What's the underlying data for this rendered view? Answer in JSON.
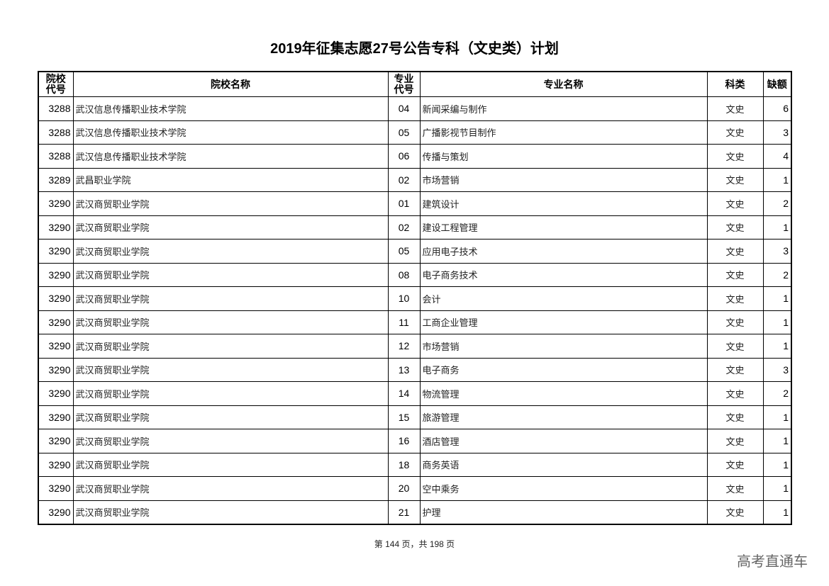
{
  "title": "2019年征集志愿27号公告专科（文史类）计划",
  "headers": {
    "school_code": "院校代号",
    "school_name": "院校名称",
    "major_code": "专业代号",
    "major_name": "专业名称",
    "category": "科类",
    "vacancies": "缺额"
  },
  "rows": [
    [
      "3288",
      "武汉信息传播职业技术学院",
      "04",
      "新闻采编与制作",
      "文史",
      "6"
    ],
    [
      "3288",
      "武汉信息传播职业技术学院",
      "05",
      "广播影视节目制作",
      "文史",
      "3"
    ],
    [
      "3288",
      "武汉信息传播职业技术学院",
      "06",
      "传播与策划",
      "文史",
      "4"
    ],
    [
      "3289",
      "武昌职业学院",
      "02",
      "市场营销",
      "文史",
      "1"
    ],
    [
      "3290",
      "武汉商贸职业学院",
      "01",
      "建筑设计",
      "文史",
      "2"
    ],
    [
      "3290",
      "武汉商贸职业学院",
      "02",
      "建设工程管理",
      "文史",
      "1"
    ],
    [
      "3290",
      "武汉商贸职业学院",
      "05",
      "应用电子技术",
      "文史",
      "3"
    ],
    [
      "3290",
      "武汉商贸职业学院",
      "08",
      "电子商务技术",
      "文史",
      "2"
    ],
    [
      "3290",
      "武汉商贸职业学院",
      "10",
      "会计",
      "文史",
      "1"
    ],
    [
      "3290",
      "武汉商贸职业学院",
      "11",
      "工商企业管理",
      "文史",
      "1"
    ],
    [
      "3290",
      "武汉商贸职业学院",
      "12",
      "市场营销",
      "文史",
      "1"
    ],
    [
      "3290",
      "武汉商贸职业学院",
      "13",
      "电子商务",
      "文史",
      "3"
    ],
    [
      "3290",
      "武汉商贸职业学院",
      "14",
      "物流管理",
      "文史",
      "2"
    ],
    [
      "3290",
      "武汉商贸职业学院",
      "15",
      "旅游管理",
      "文史",
      "1"
    ],
    [
      "3290",
      "武汉商贸职业学院",
      "16",
      "酒店管理",
      "文史",
      "1"
    ],
    [
      "3290",
      "武汉商贸职业学院",
      "18",
      "商务英语",
      "文史",
      "1"
    ],
    [
      "3290",
      "武汉商贸职业学院",
      "20",
      "空中乘务",
      "文史",
      "1"
    ],
    [
      "3290",
      "武汉商贸职业学院",
      "21",
      "护理",
      "文史",
      "1"
    ]
  ],
  "footer": "第 144 页，共 198 页",
  "watermark": "高考直通车"
}
